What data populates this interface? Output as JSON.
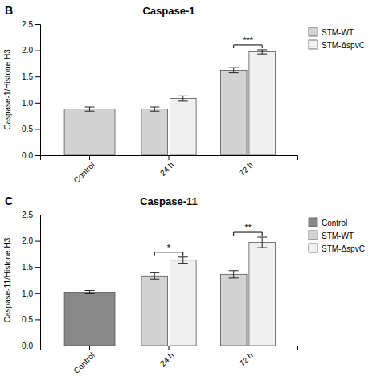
{
  "chart_data": [
    {
      "type": "bar",
      "title": "Caspase-1",
      "y_label": "Caspase-1/Histone H3",
      "categories": [
        "Control",
        "24 h",
        "72 h"
      ],
      "series": [
        {
          "name": "STM-WT",
          "color": "#d3d3d3",
          "values": [
            0.88,
            0.88,
            1.62
          ],
          "errors": [
            0.04,
            0.04,
            0.05
          ]
        },
        {
          "name": "STM-ΔspvC",
          "color": "#f0f0f0",
          "values": [
            null,
            1.08,
            1.97
          ],
          "errors": [
            null,
            0.05,
            0.04
          ]
        }
      ],
      "ylim": [
        0,
        2.5
      ],
      "yticks": [
        {
          "value": 0,
          "label": "0.0"
        },
        0.5,
        {
          "value": 1,
          "label": "1.0"
        },
        1.5,
        {
          "value": 2,
          "label": "2.0"
        },
        2.5
      ],
      "annotations": [
        {
          "text": "B"
        },
        {
          "text": "***",
          "category": "72 h"
        }
      ]
    },
    {
      "type": "bar",
      "title": "Caspase-11",
      "y_label": "Caspase-11/Histone H3",
      "categories": [
        "Control",
        "24 h",
        "72 h"
      ],
      "series": [
        {
          "name": "Control",
          "color": "#888888",
          "values": [
            1.02,
            null,
            null
          ],
          "errors": [
            0.03,
            null,
            null
          ]
        },
        {
          "name": "STM-WT",
          "color": "#d3d3d3",
          "values": [
            null,
            1.33,
            1.36
          ],
          "errors": [
            null,
            0.06,
            0.07
          ]
        },
        {
          "name": "STM-ΔspvC",
          "color": "#f0f0f0",
          "values": [
            null,
            1.63,
            1.97
          ],
          "errors": [
            null,
            0.06,
            0.1
          ]
        }
      ],
      "ylim": [
        0,
        2.5
      ],
      "yticks": [
        {
          "value": 0,
          "label": "0.0"
        },
        0.5,
        {
          "value": 1,
          "label": "1.0"
        },
        1.5,
        {
          "value": 2,
          "label": "2.0"
        },
        2.5
      ],
      "annotations": [
        {
          "text": "C"
        },
        {
          "text": "*",
          "category": "24 h"
        },
        {
          "text": "**",
          "category": "72 h"
        }
      ]
    }
  ]
}
